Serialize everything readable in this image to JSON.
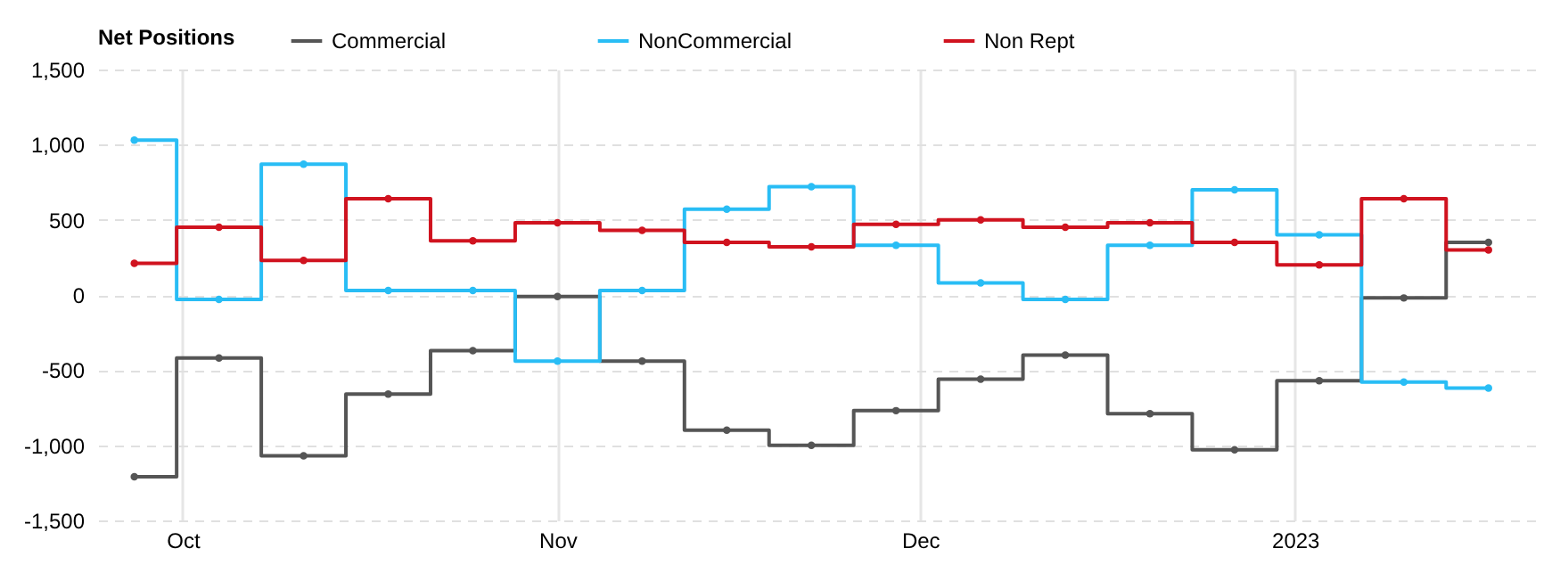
{
  "chart_data": {
    "type": "step",
    "legend_title": "Net Positions",
    "legend": "top",
    "grid": true,
    "marker": "circle",
    "line_style": "solid",
    "x": [
      "2022-09-27",
      "2022-10-04",
      "2022-10-11",
      "2022-10-18",
      "2022-10-25",
      "2022-11-01",
      "2022-11-08",
      "2022-11-15",
      "2022-11-22",
      "2022-11-29",
      "2022-12-06",
      "2022-12-13",
      "2022-12-20",
      "2022-12-27",
      "2023-01-03",
      "2023-01-10",
      "2023-01-17"
    ],
    "xlim": [
      "2022-09-24",
      "2023-01-21"
    ],
    "xticks": [
      {
        "value": "2022-10-01",
        "label": "Oct"
      },
      {
        "value": "2022-11-01",
        "label": "Nov"
      },
      {
        "value": "2022-12-01",
        "label": "Dec"
      },
      {
        "value": "2023-01-01",
        "label": "2023"
      }
    ],
    "ylim": [
      -1500,
      1500
    ],
    "yticks": [
      {
        "value": -1500,
        "label": "-1,500"
      },
      {
        "value": -1000,
        "label": "-1,000"
      },
      -500,
      0,
      500,
      {
        "value": 1000,
        "label": "1,000"
      },
      {
        "value": 1500,
        "label": "1,500"
      }
    ],
    "series": [
      {
        "name": "Commercial",
        "color": "#555555",
        "values": [
          -1210,
          -420,
          -1070,
          -660,
          -370,
          -10,
          -440,
          -900,
          -1000,
          -770,
          -560,
          -400,
          -790,
          -1030,
          -570,
          -20,
          350
        ]
      },
      {
        "name": "NonCommercial",
        "color": "#29bdf5",
        "values": [
          1030,
          -30,
          870,
          30,
          30,
          -440,
          30,
          570,
          720,
          330,
          80,
          -30,
          330,
          700,
          400,
          -580,
          -620
        ]
      },
      {
        "name": "Non Rept",
        "color": "#d0131f",
        "values": [
          210,
          450,
          230,
          640,
          360,
          480,
          430,
          350,
          320,
          470,
          500,
          450,
          480,
          350,
          200,
          640,
          300
        ]
      }
    ]
  }
}
